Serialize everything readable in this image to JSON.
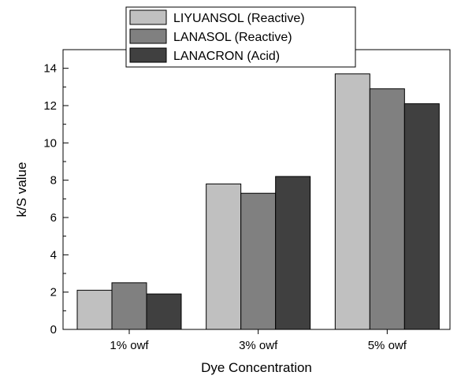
{
  "chart_data": {
    "type": "bar",
    "categories": [
      "1% owf",
      "3% owf",
      "5% owf"
    ],
    "series": [
      {
        "name": "LIYUANSOL (Reactive)",
        "values": [
          2.1,
          7.8,
          13.7
        ],
        "color": "#c0c0c0"
      },
      {
        "name": "LANASOL (Reactive)",
        "values": [
          2.5,
          7.3,
          12.9
        ],
        "color": "#808080"
      },
      {
        "name": "LANACRON (Acid)",
        "values": [
          1.9,
          8.2,
          12.1
        ],
        "color": "#404040"
      }
    ],
    "xlabel": "Dye Concentration",
    "ylabel": "k/S value",
    "ylim": [
      0,
      15
    ],
    "yticks": [
      0,
      2,
      4,
      6,
      8,
      10,
      12,
      14
    ],
    "grid": false,
    "legend_position": "top-center"
  }
}
